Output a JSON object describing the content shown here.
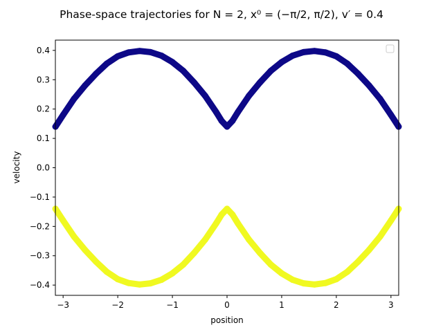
{
  "chart_data": {
    "type": "scatter",
    "title": "Phase-space trajectories for N = 2, x⁰ = (−π/2, π/2), v′ = 0.4",
    "xlabel": "position",
    "ylabel": "velocity",
    "xlim": [
      -3.1416,
      3.1416
    ],
    "ylim": [
      -0.435,
      0.435
    ],
    "x_ticks": [
      -3,
      -2,
      -1,
      0,
      1,
      2,
      3
    ],
    "x_tick_labels": [
      "−3",
      "−2",
      "−1",
      "0",
      "1",
      "2",
      "3"
    ],
    "y_ticks": [
      -0.4,
      -0.3,
      -0.2,
      -0.1,
      0.0,
      0.1,
      0.2,
      0.3,
      0.4
    ],
    "y_tick_labels": [
      "−0.4",
      "−0.3",
      "−0.2",
      "−0.1",
      "0.0",
      "0.1",
      "0.2",
      "0.3",
      "0.4"
    ],
    "grid": false,
    "legend": {
      "location": "upper right",
      "entries": []
    },
    "series": [
      {
        "color": "#0d0887",
        "x": [
          -3.14,
          -3.0,
          -2.8,
          -2.6,
          -2.4,
          -2.2,
          -2.0,
          -1.8,
          -1.6,
          -1.4,
          -1.2,
          -1.0,
          -0.8,
          -0.6,
          -0.4,
          -0.2,
          -0.1,
          0.0,
          0.1,
          0.2,
          0.4,
          0.6,
          0.8,
          1.0,
          1.2,
          1.4,
          1.6,
          1.8,
          2.0,
          2.2,
          2.4,
          2.6,
          2.8,
          3.0,
          3.14
        ],
        "y": [
          0.14,
          0.18,
          0.235,
          0.28,
          0.32,
          0.355,
          0.38,
          0.393,
          0.398,
          0.394,
          0.382,
          0.36,
          0.33,
          0.29,
          0.245,
          0.19,
          0.16,
          0.14,
          0.16,
          0.19,
          0.245,
          0.29,
          0.33,
          0.36,
          0.382,
          0.394,
          0.398,
          0.393,
          0.38,
          0.355,
          0.32,
          0.28,
          0.235,
          0.18,
          0.14
        ]
      },
      {
        "color": "#f0f921",
        "x": [
          -3.14,
          -3.0,
          -2.8,
          -2.6,
          -2.4,
          -2.2,
          -2.0,
          -1.8,
          -1.6,
          -1.4,
          -1.2,
          -1.0,
          -0.8,
          -0.6,
          -0.4,
          -0.2,
          -0.1,
          0.0,
          0.1,
          0.2,
          0.4,
          0.6,
          0.8,
          1.0,
          1.2,
          1.4,
          1.6,
          1.8,
          2.0,
          2.2,
          2.4,
          2.6,
          2.8,
          3.0,
          3.14
        ],
        "y": [
          -0.14,
          -0.18,
          -0.235,
          -0.28,
          -0.32,
          -0.355,
          -0.38,
          -0.393,
          -0.398,
          -0.394,
          -0.382,
          -0.36,
          -0.33,
          -0.29,
          -0.245,
          -0.19,
          -0.16,
          -0.14,
          -0.16,
          -0.19,
          -0.245,
          -0.29,
          -0.33,
          -0.36,
          -0.382,
          -0.394,
          -0.398,
          -0.393,
          -0.38,
          -0.355,
          -0.32,
          -0.28,
          -0.235,
          -0.18,
          -0.14
        ]
      }
    ]
  }
}
